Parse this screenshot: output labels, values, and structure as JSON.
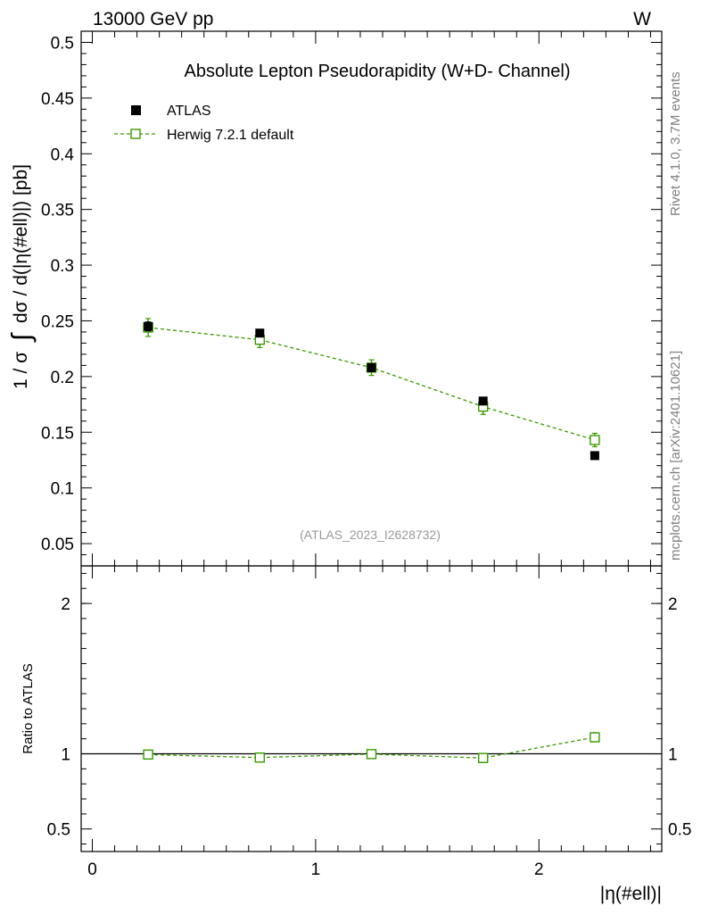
{
  "header": {
    "energy_label": "13000 GeV pp",
    "process_label": "W"
  },
  "side_labels": {
    "rivet": "Rivet 4.1.0,  3.7M events",
    "source": "mcplots.cern.ch [arXiv:2401.10621]"
  },
  "colors": {
    "data": "#000000",
    "mc": "#3a9a00",
    "watermark": "#999999",
    "side_text": "#808080"
  },
  "chart_data": [
    {
      "type": "scatter",
      "title": "Absolute Lepton Pseudorapidity (W+D- Channel)",
      "ylabel": "1 / σ ∫ dσ / d(|η(#ell)|) [pb]",
      "ylabel_parts": {
        "prefix": "1 / σ",
        "integral": "∫",
        "suffix": "dσ / d(|η(#ell)|) [pb]"
      },
      "xlabel": "",
      "xlim": [
        -0.05,
        2.55
      ],
      "ylim": [
        0.03,
        0.51
      ],
      "yticks": [
        0.05,
        0.1,
        0.15,
        0.2,
        0.25,
        0.3,
        0.35,
        0.4,
        0.45,
        0.5
      ],
      "ytick_labels": [
        "0.05",
        "0.1",
        "0.15",
        "0.2",
        "0.25",
        "0.3",
        "0.35",
        "0.4",
        "0.45",
        "0.5"
      ],
      "watermark": "(ATLAS_2023_I2628732)",
      "legend_position": "top-left",
      "series": [
        {
          "name": "ATLAS",
          "marker": "filled-square",
          "x": [
            0.25,
            0.75,
            1.25,
            1.75,
            2.25
          ],
          "y": [
            0.245,
            0.239,
            0.208,
            0.178,
            0.129
          ],
          "yerr": [
            0.004,
            0.003,
            0.003,
            0.003,
            0.003
          ]
        },
        {
          "name": "Herwig 7.2.1 default",
          "marker": "open-square",
          "line": "dashed",
          "x": [
            0.25,
            0.75,
            1.25,
            1.75,
            2.25
          ],
          "y": [
            0.244,
            0.233,
            0.208,
            0.173,
            0.143
          ],
          "yerr": [
            0.008,
            0.007,
            0.007,
            0.007,
            0.006
          ]
        }
      ]
    },
    {
      "type": "scatter",
      "title": "",
      "ylabel": "Ratio to ATLAS",
      "xlabel": "|η(#ell)|",
      "xlim": [
        -0.05,
        2.55
      ],
      "ylim": [
        0.35,
        2.25
      ],
      "yticks": [
        0.5,
        1,
        2
      ],
      "ytick_labels": [
        "0.5",
        "1",
        "2"
      ],
      "xticks": [
        0,
        1,
        2
      ],
      "xtick_labels": [
        "0",
        "1",
        "2"
      ],
      "reference_line": 1,
      "series": [
        {
          "name": "Herwig 7.2.1 default",
          "marker": "open-square",
          "line": "dashed",
          "x": [
            0.25,
            0.75,
            1.25,
            1.75,
            2.25
          ],
          "y": [
            0.995,
            0.975,
            0.998,
            0.972,
            1.11
          ],
          "yerr": [
            0.02,
            0.02,
            0.02,
            0.03,
            0.03
          ]
        }
      ]
    }
  ]
}
